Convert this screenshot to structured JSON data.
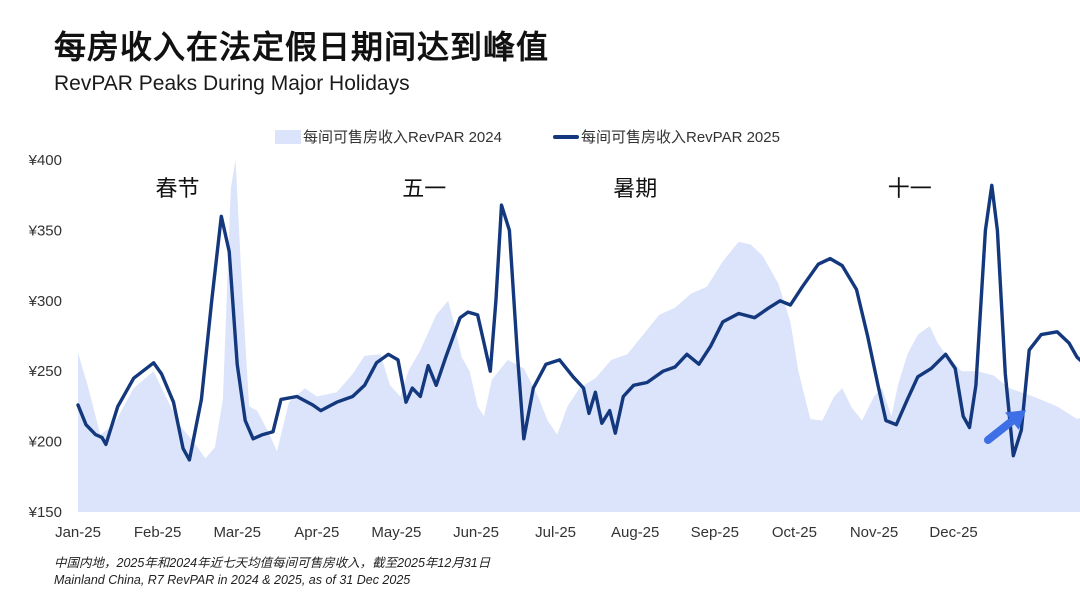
{
  "title": "每房收入在法定假日期间达到峰值",
  "subtitle": "RevPAR Peaks During Major Holidays",
  "footnote": {
    "line1": "中国内地，2025年和2024年近七天均值每间可售房收入，截至2025年12月31日",
    "line2": "Mainland China, R7 RevPAR in 2024 & 2025, as of 31 Dec 2025"
  },
  "colors": {
    "series_2024": "#dbe4fa",
    "series_2025": "#14387d",
    "arrow": "#3f6fe6"
  },
  "icons": {
    "trend_arrow": "arrow-up-right-icon"
  },
  "chart_data": {
    "type": "area",
    "x_ticks": [
      "Jan-25",
      "Feb-25",
      "Mar-25",
      "Apr-25",
      "May-25",
      "Jun-25",
      "Jul-25",
      "Aug-25",
      "Sep-25",
      "Oct-25",
      "Nov-25",
      "Dec-25"
    ],
    "y_ticks": [
      "¥400",
      "¥350",
      "¥300",
      "¥250",
      "¥200",
      "¥150"
    ],
    "ylim": [
      150,
      400
    ],
    "grid": false,
    "legend_position": "top",
    "holiday_labels": [
      {
        "text": "春节",
        "x": 1.25
      },
      {
        "text": "五一",
        "x": 4.35
      },
      {
        "text": "暑期",
        "x": 7.0
      },
      {
        "text": "十一",
        "x": 10.45
      }
    ],
    "series": [
      {
        "name": "每间可售房收入RevPAR 2024",
        "type": "area",
        "points": [
          [
            0,
            263
          ],
          [
            0.12,
            240
          ],
          [
            0.28,
            205
          ],
          [
            0.45,
            212
          ],
          [
            0.7,
            238
          ],
          [
            0.95,
            250
          ],
          [
            1.1,
            232
          ],
          [
            1.3,
            210
          ],
          [
            1.45,
            200
          ],
          [
            1.6,
            188
          ],
          [
            1.72,
            196
          ],
          [
            1.82,
            230
          ],
          [
            1.92,
            380
          ],
          [
            1.98,
            400
          ],
          [
            2.05,
            320
          ],
          [
            2.15,
            225
          ],
          [
            2.25,
            222
          ],
          [
            2.4,
            206
          ],
          [
            2.5,
            193
          ],
          [
            2.65,
            228
          ],
          [
            2.85,
            238
          ],
          [
            3.0,
            232
          ],
          [
            3.25,
            235
          ],
          [
            3.45,
            248
          ],
          [
            3.6,
            261
          ],
          [
            3.8,
            262
          ],
          [
            3.92,
            240
          ],
          [
            4.05,
            232
          ],
          [
            4.15,
            250
          ],
          [
            4.3,
            265
          ],
          [
            4.5,
            290
          ],
          [
            4.65,
            300
          ],
          [
            4.72,
            285
          ],
          [
            4.82,
            260
          ],
          [
            4.92,
            250
          ],
          [
            5.02,
            225
          ],
          [
            5.1,
            218
          ],
          [
            5.2,
            244
          ],
          [
            5.4,
            258
          ],
          [
            5.6,
            252
          ],
          [
            5.78,
            232
          ],
          [
            5.9,
            215
          ],
          [
            6.02,
            205
          ],
          [
            6.15,
            225
          ],
          [
            6.3,
            238
          ],
          [
            6.5,
            245
          ],
          [
            6.7,
            258
          ],
          [
            6.9,
            262
          ],
          [
            7.1,
            276
          ],
          [
            7.3,
            290
          ],
          [
            7.5,
            295
          ],
          [
            7.7,
            305
          ],
          [
            7.9,
            310
          ],
          [
            8.1,
            328
          ],
          [
            8.3,
            342
          ],
          [
            8.45,
            340
          ],
          [
            8.6,
            332
          ],
          [
            8.8,
            312
          ],
          [
            8.95,
            285
          ],
          [
            9.05,
            250
          ],
          [
            9.2,
            216
          ],
          [
            9.35,
            215
          ],
          [
            9.5,
            232
          ],
          [
            9.6,
            238
          ],
          [
            9.72,
            224
          ],
          [
            9.85,
            215
          ],
          [
            10.0,
            232
          ],
          [
            10.1,
            238
          ],
          [
            10.22,
            218
          ],
          [
            10.3,
            240
          ],
          [
            10.42,
            262
          ],
          [
            10.55,
            276
          ],
          [
            10.7,
            282
          ],
          [
            10.8,
            270
          ],
          [
            10.9,
            262
          ],
          [
            11.1,
            250
          ],
          [
            11.3,
            250
          ],
          [
            11.5,
            247
          ],
          [
            11.7,
            238
          ],
          [
            12.0,
            232
          ],
          [
            12.3,
            225
          ],
          [
            12.55,
            216
          ],
          [
            12.8,
            222
          ],
          [
            13.0,
            226
          ],
          [
            13.06,
            232
          ],
          [
            13.06,
            150
          ],
          [
            0,
            150
          ]
        ]
      },
      {
        "name": "每间可售房收入RevPAR 2025",
        "type": "line",
        "points": [
          [
            0,
            226
          ],
          [
            0.1,
            212
          ],
          [
            0.22,
            205
          ],
          [
            0.3,
            203
          ],
          [
            0.35,
            198
          ],
          [
            0.5,
            225
          ],
          [
            0.7,
            245
          ],
          [
            0.95,
            256
          ],
          [
            1.05,
            248
          ],
          [
            1.2,
            228
          ],
          [
            1.32,
            195
          ],
          [
            1.4,
            187
          ],
          [
            1.55,
            230
          ],
          [
            1.68,
            300
          ],
          [
            1.8,
            360
          ],
          [
            1.9,
            335
          ],
          [
            2.0,
            255
          ],
          [
            2.1,
            215
          ],
          [
            2.2,
            202
          ],
          [
            2.32,
            205
          ],
          [
            2.45,
            207
          ],
          [
            2.55,
            230
          ],
          [
            2.75,
            232
          ],
          [
            2.95,
            226
          ],
          [
            3.05,
            222
          ],
          [
            3.25,
            228
          ],
          [
            3.45,
            232
          ],
          [
            3.6,
            240
          ],
          [
            3.75,
            256
          ],
          [
            3.9,
            262
          ],
          [
            4.02,
            258
          ],
          [
            4.12,
            228
          ],
          [
            4.2,
            238
          ],
          [
            4.3,
            232
          ],
          [
            4.4,
            254
          ],
          [
            4.5,
            240
          ],
          [
            4.62,
            260
          ],
          [
            4.8,
            288
          ],
          [
            4.9,
            292
          ],
          [
            5.02,
            290
          ],
          [
            5.1,
            270
          ],
          [
            5.18,
            250
          ],
          [
            5.25,
            300
          ],
          [
            5.32,
            368
          ],
          [
            5.42,
            350
          ],
          [
            5.52,
            262
          ],
          [
            5.6,
            202
          ],
          [
            5.72,
            238
          ],
          [
            5.88,
            255
          ],
          [
            6.05,
            258
          ],
          [
            6.22,
            246
          ],
          [
            6.35,
            238
          ],
          [
            6.42,
            220
          ],
          [
            6.5,
            235
          ],
          [
            6.58,
            213
          ],
          [
            6.68,
            222
          ],
          [
            6.75,
            206
          ],
          [
            6.85,
            232
          ],
          [
            6.98,
            240
          ],
          [
            7.15,
            242
          ],
          [
            7.35,
            250
          ],
          [
            7.5,
            253
          ],
          [
            7.65,
            262
          ],
          [
            7.8,
            255
          ],
          [
            7.95,
            268
          ],
          [
            8.1,
            285
          ],
          [
            8.3,
            291
          ],
          [
            8.5,
            288
          ],
          [
            8.68,
            295
          ],
          [
            8.82,
            300
          ],
          [
            8.95,
            297
          ],
          [
            9.1,
            310
          ],
          [
            9.3,
            326
          ],
          [
            9.45,
            330
          ],
          [
            9.6,
            325
          ],
          [
            9.78,
            308
          ],
          [
            9.92,
            275
          ],
          [
            10.05,
            240
          ],
          [
            10.15,
            215
          ],
          [
            10.28,
            212
          ],
          [
            10.42,
            230
          ],
          [
            10.55,
            246
          ],
          [
            10.72,
            252
          ],
          [
            10.9,
            262
          ],
          [
            11.02,
            252
          ],
          [
            11.12,
            218
          ],
          [
            11.2,
            210
          ],
          [
            11.28,
            240
          ],
          [
            11.4,
            350
          ],
          [
            11.48,
            382
          ],
          [
            11.55,
            350
          ],
          [
            11.65,
            248
          ],
          [
            11.75,
            190
          ],
          [
            11.85,
            208
          ],
          [
            11.95,
            265
          ],
          [
            12.1,
            276
          ],
          [
            12.3,
            278
          ],
          [
            12.45,
            270
          ],
          [
            12.55,
            260
          ],
          [
            12.7,
            252
          ],
          [
            12.85,
            250
          ],
          [
            13.0,
            248
          ],
          [
            13.15,
            255
          ],
          [
            13.3,
            256
          ],
          [
            13.45,
            248
          ],
          [
            13.6,
            240
          ],
          [
            13.75,
            239
          ],
          [
            13.9,
            233
          ],
          [
            14.05,
            226
          ],
          [
            14.2,
            224
          ],
          [
            14.35,
            218
          ],
          [
            14.5,
            216
          ],
          [
            14.65,
            220
          ],
          [
            14.8,
            228
          ],
          [
            14.95,
            233
          ],
          [
            15.1,
            237
          ],
          [
            15.2,
            235
          ],
          [
            15.28,
            240
          ],
          [
            15.35,
            238
          ],
          [
            15.42,
            253
          ]
        ]
      }
    ]
  }
}
